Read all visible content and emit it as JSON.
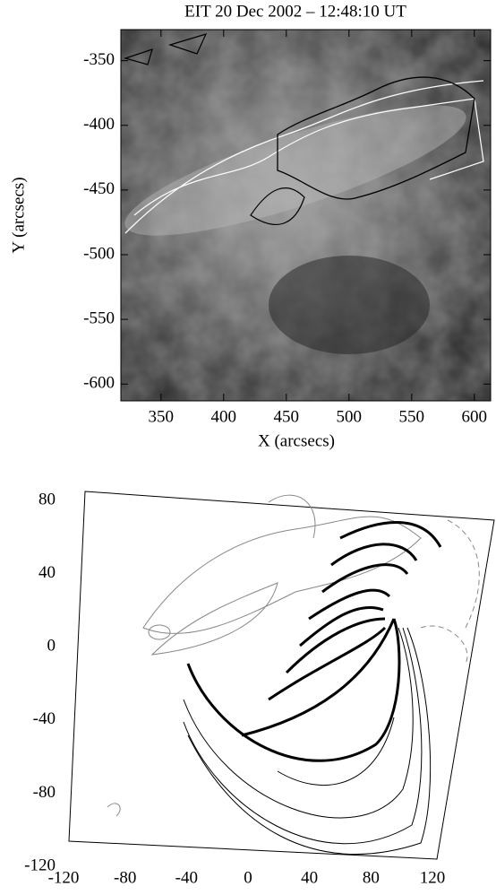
{
  "chart_data": [
    {
      "type": "image",
      "title": "EIT  20 Dec 2002 – 12:48:10 UT",
      "xlabel": "X (arcsecs)",
      "ylabel": "Y (arcsecs)",
      "xlim": [
        318,
        613
      ],
      "ylim": [
        -613,
        -326
      ],
      "xticks": [
        350,
        400,
        450,
        500,
        550,
        600
      ],
      "yticks": [
        -350,
        -400,
        -450,
        -500,
        -550,
        -600
      ]
    },
    {
      "type": "field-lines",
      "xlim": [
        -120,
        120
      ],
      "ylim": [
        -120,
        80
      ],
      "xticks": [
        -120,
        -80,
        -40,
        0,
        40,
        80,
        120
      ],
      "yticks": [
        -120,
        -80,
        -40,
        0,
        40,
        80
      ]
    }
  ]
}
